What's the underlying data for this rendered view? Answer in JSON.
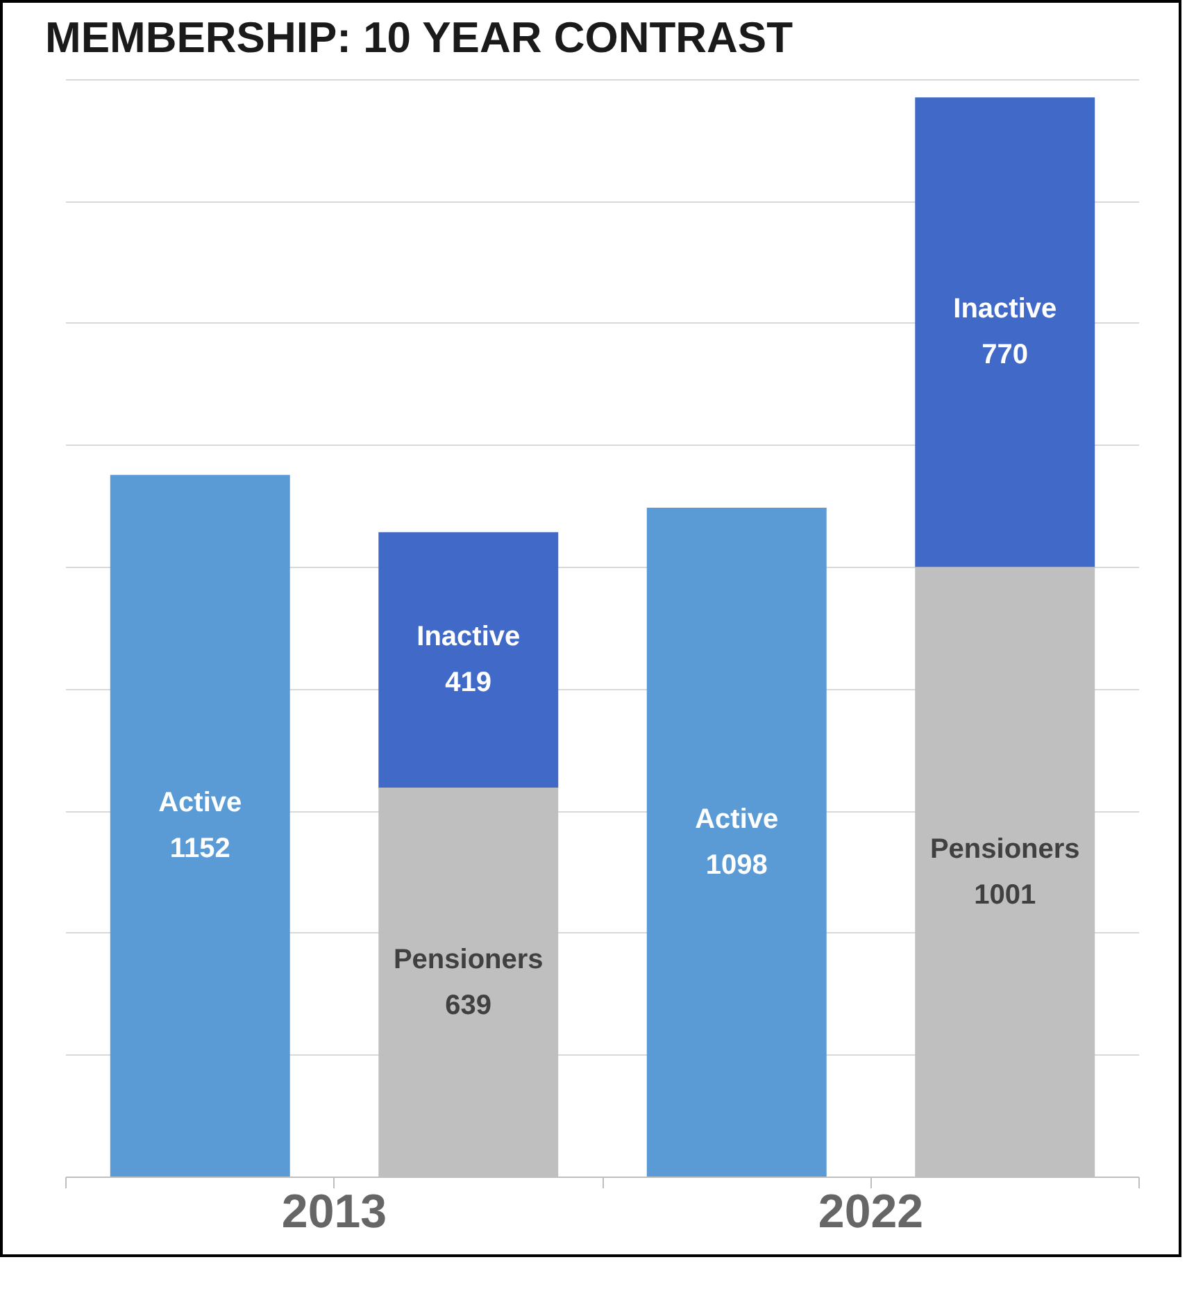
{
  "chart_data": {
    "type": "bar",
    "title": "MEMBERSHIP: 10 YEAR CONTRAST",
    "categories": [
      null,
      null,
      null,
      null
    ],
    "stacked": true,
    "data_labels": true,
    "grid": "y",
    "tick_labels": false,
    "yticks": [
      {
        "value": 0,
        "label": null
      },
      {
        "value": 200,
        "label": null
      },
      {
        "value": 400,
        "label": null
      },
      {
        "value": 600,
        "label": null
      },
      {
        "value": 800,
        "label": null
      },
      {
        "value": 1000,
        "label": null
      },
      {
        "value": 1200,
        "label": null
      },
      {
        "value": 1400,
        "label": null
      },
      {
        "value": 1600,
        "label": null
      },
      {
        "value": 1800,
        "label": null
      }
    ],
    "annotations": [
      "2013",
      "2022"
    ],
    "series": [
      {
        "name": "Active",
        "color": "#5b9bd5",
        "values": [
          1152,
          null,
          1098,
          null
        ]
      },
      {
        "name": "Pensioners",
        "color": "#bfbfbf",
        "values": [
          null,
          639,
          null,
          1001
        ]
      },
      {
        "name": "Inactive",
        "color": "#4169c8",
        "values": [
          null,
          419,
          null,
          770
        ]
      }
    ]
  }
}
